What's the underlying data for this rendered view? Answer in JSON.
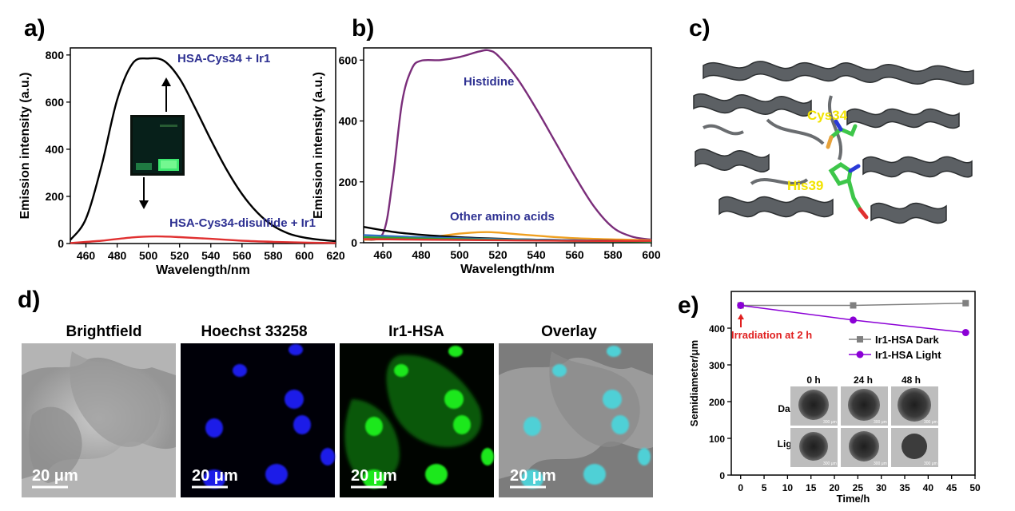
{
  "panels": {
    "a": {
      "label": "a)",
      "annotation_top": "HSA-Cys34 + Ir1",
      "annotation_bottom": "HSA-Cys34-disulfide + Ir1"
    },
    "b": {
      "label": "b)",
      "annotation_histidine": "Histidine",
      "annotation_other": "Other amino acids"
    },
    "c": {
      "label": "c)",
      "residue_1": "Cys34",
      "residue_2": "His39"
    },
    "d": {
      "label": "d)",
      "images": [
        {
          "title": "Brightfield",
          "scale": "20 μm"
        },
        {
          "title": "Hoechst 33258",
          "scale": "20 μm"
        },
        {
          "title": "Ir1-HSA",
          "scale": "20 μm"
        },
        {
          "title": "Overlay",
          "scale": "20 μm"
        }
      ]
    },
    "e": {
      "label": "e)",
      "irradiation_note": "Irradiation at 2 h",
      "inset_cols": [
        "0 h",
        "24 h",
        "48 h"
      ],
      "inset_rows": [
        "Dark",
        "Light"
      ],
      "inset_scale": "300 μm"
    }
  },
  "colors": {
    "annotation": "#2e3192",
    "light_series": "#8b00d6",
    "dark_series": "#808080",
    "irradiation": "#e02020",
    "residue": "#f2e300"
  },
  "chart_data": [
    {
      "id": "a",
      "type": "line",
      "xlabel": "Wavelength/nm",
      "ylabel": "Emission intensity (a.u.)",
      "xlim": [
        450,
        620
      ],
      "ylim": [
        0,
        830
      ],
      "xticks": [
        460,
        480,
        500,
        520,
        540,
        560,
        580,
        600,
        620
      ],
      "yticks": [
        0,
        200,
        400,
        600,
        800
      ],
      "series": [
        {
          "name": "HSA-Cys34 + Ir1",
          "color": "#000000",
          "x": [
            450,
            460,
            470,
            480,
            490,
            500,
            510,
            520,
            530,
            540,
            550,
            560,
            570,
            580,
            590,
            600,
            610,
            620
          ],
          "y": [
            15,
            105,
            330,
            610,
            765,
            785,
            775,
            700,
            575,
            440,
            315,
            210,
            130,
            75,
            42,
            25,
            16,
            10
          ]
        },
        {
          "name": "HSA-Cys34-disulfide + Ir1",
          "color": "#e03030",
          "x": [
            450,
            470,
            490,
            505,
            520,
            540,
            560,
            580,
            600,
            620
          ],
          "y": [
            2,
            12,
            26,
            30,
            27,
            20,
            12,
            7,
            4,
            2
          ]
        }
      ]
    },
    {
      "id": "b",
      "type": "line",
      "xlabel": "Wavelength/nm",
      "ylabel": "Emission intensity (a.u.)",
      "xlim": [
        450,
        600
      ],
      "ylim": [
        0,
        640
      ],
      "xticks": [
        460,
        480,
        500,
        520,
        540,
        560,
        580,
        600
      ],
      "yticks": [
        0,
        200,
        400,
        600
      ],
      "series": [
        {
          "name": "Histidine",
          "color": "#7a2d7a",
          "x": [
            450,
            460,
            465,
            470,
            475,
            480,
            490,
            500,
            510,
            515,
            520,
            530,
            540,
            550,
            560,
            570,
            580,
            590,
            600
          ],
          "y": [
            10,
            30,
            200,
            460,
            570,
            598,
            600,
            610,
            628,
            632,
            615,
            540,
            440,
            330,
            220,
            120,
            50,
            20,
            10
          ]
        },
        {
          "name": "Other amino acids",
          "color": "#f0a020",
          "x": [
            450,
            480,
            500,
            515,
            530,
            560,
            600
          ],
          "y": [
            10,
            15,
            30,
            35,
            28,
            15,
            8
          ]
        },
        {
          "name": "Other amino acids",
          "color": "#000000",
          "x": [
            450,
            470,
            500,
            540,
            600
          ],
          "y": [
            52,
            32,
            18,
            10,
            5
          ]
        },
        {
          "name": "Other amino acids",
          "color": "#3070c0",
          "x": [
            450,
            480,
            520,
            560,
            600
          ],
          "y": [
            25,
            18,
            12,
            8,
            4
          ]
        },
        {
          "name": "Other amino acids",
          "color": "#30a030",
          "x": [
            450,
            480,
            520,
            560,
            600
          ],
          "y": [
            18,
            14,
            10,
            6,
            4
          ]
        },
        {
          "name": "Other amino acids",
          "color": "#e03030",
          "x": [
            450,
            480,
            520,
            560,
            600
          ],
          "y": [
            12,
            10,
            8,
            6,
            6
          ]
        }
      ]
    },
    {
      "id": "e",
      "type": "line",
      "xlabel": "Time/h",
      "ylabel": "Semidiameter/μm",
      "xlim": [
        -2,
        50
      ],
      "ylim": [
        0,
        500
      ],
      "xticks": [
        0,
        5,
        10,
        15,
        20,
        25,
        30,
        35,
        40,
        45,
        50
      ],
      "yticks": [
        0,
        100,
        200,
        300,
        400
      ],
      "series": [
        {
          "name": "Ir1-HSA Dark",
          "color": "#808080",
          "marker": "square",
          "x": [
            0,
            24,
            48
          ],
          "y": [
            462,
            462,
            468
          ]
        },
        {
          "name": "Ir1-HSA Light",
          "color": "#8b00d6",
          "marker": "circle",
          "x": [
            0,
            24,
            48
          ],
          "y": [
            462,
            422,
            388
          ]
        }
      ]
    }
  ]
}
